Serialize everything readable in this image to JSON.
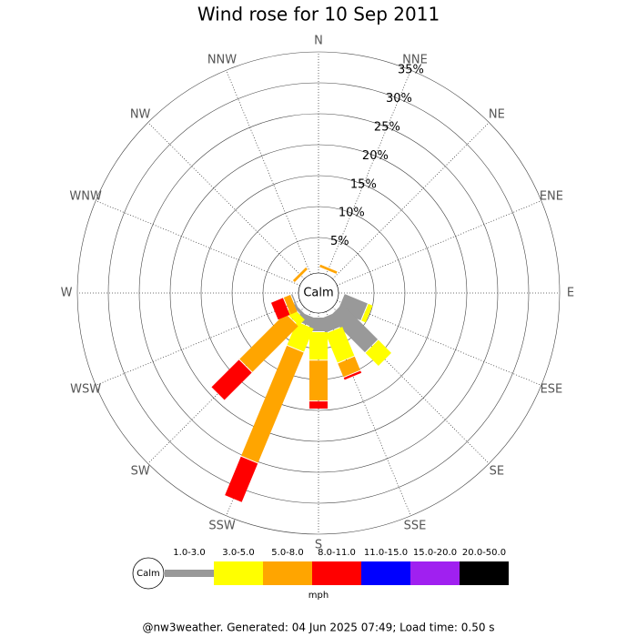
{
  "chart_data": {
    "type": "wind-rose",
    "title": "Wind rose for 10 Sep 2011",
    "categories": [
      "N",
      "NNE",
      "NE",
      "ENE",
      "E",
      "ESE",
      "SE",
      "SSE",
      "S",
      "SSW",
      "SW",
      "WSW",
      "W",
      "WNW",
      "NW",
      "NNW"
    ],
    "series": [
      {
        "name": "1.0-3.0",
        "color": "#999999",
        "values": [
          0,
          0,
          0,
          0,
          0,
          4.0,
          8.1,
          2.4,
          2.2,
          1.5,
          0.5,
          0.2,
          0,
          0,
          0,
          0
        ]
      },
      {
        "name": "3.0-5.0",
        "color": "#ffff00",
        "values": [
          0,
          0,
          0,
          0,
          0,
          0.9,
          3.1,
          5.2,
          4.6,
          4.2,
          1.5,
          0,
          0,
          0,
          0,
          0
        ]
      },
      {
        "name": "5.0-8.0",
        "color": "#ffa500",
        "values": [
          0,
          0.4,
          0,
          0,
          0,
          0,
          0,
          2.5,
          6.6,
          19.4,
          10.6,
          1.3,
          0,
          0,
          0.4,
          0
        ]
      },
      {
        "name": "8.0-11.0",
        "color": "#ff0000",
        "values": [
          0,
          0,
          0,
          0,
          0,
          0,
          0,
          0.5,
          1.3,
          6.9,
          6.4,
          2.2,
          0,
          0,
          0,
          0
        ]
      },
      {
        "name": "11.0-15.0",
        "color": "#0000ff",
        "values": [
          0,
          0,
          0,
          0,
          0,
          0,
          0,
          0,
          0,
          0,
          0,
          0,
          0,
          0,
          0,
          0
        ]
      },
      {
        "name": "15.0-20.0",
        "color": "#a020f0",
        "values": [
          0,
          0,
          0,
          0,
          0,
          0,
          0,
          0,
          0,
          0,
          0,
          0,
          0,
          0,
          0,
          0
        ]
      },
      {
        "name": "20.0-50.0",
        "color": "#000000",
        "values": [
          0,
          0,
          0,
          0,
          0,
          0,
          0,
          0,
          0,
          0,
          0,
          0,
          0,
          0,
          0,
          0
        ]
      }
    ],
    "ylim": [
      0,
      35
    ],
    "yticks": [
      {
        "value": 5,
        "label": "5%"
      },
      {
        "value": 10,
        "label": "10%"
      },
      {
        "value": 15,
        "label": "15%"
      },
      {
        "value": 20,
        "label": "20%"
      },
      {
        "value": 25,
        "label": "25%"
      },
      {
        "value": 30,
        "label": "30%"
      },
      {
        "value": 35,
        "label": "35%"
      }
    ],
    "calm_label": "Calm",
    "unit_label": "mph",
    "footer": "@nw3weather. Generated: 04 Jun 2025 07:49; Load time: 0.50 s"
  }
}
